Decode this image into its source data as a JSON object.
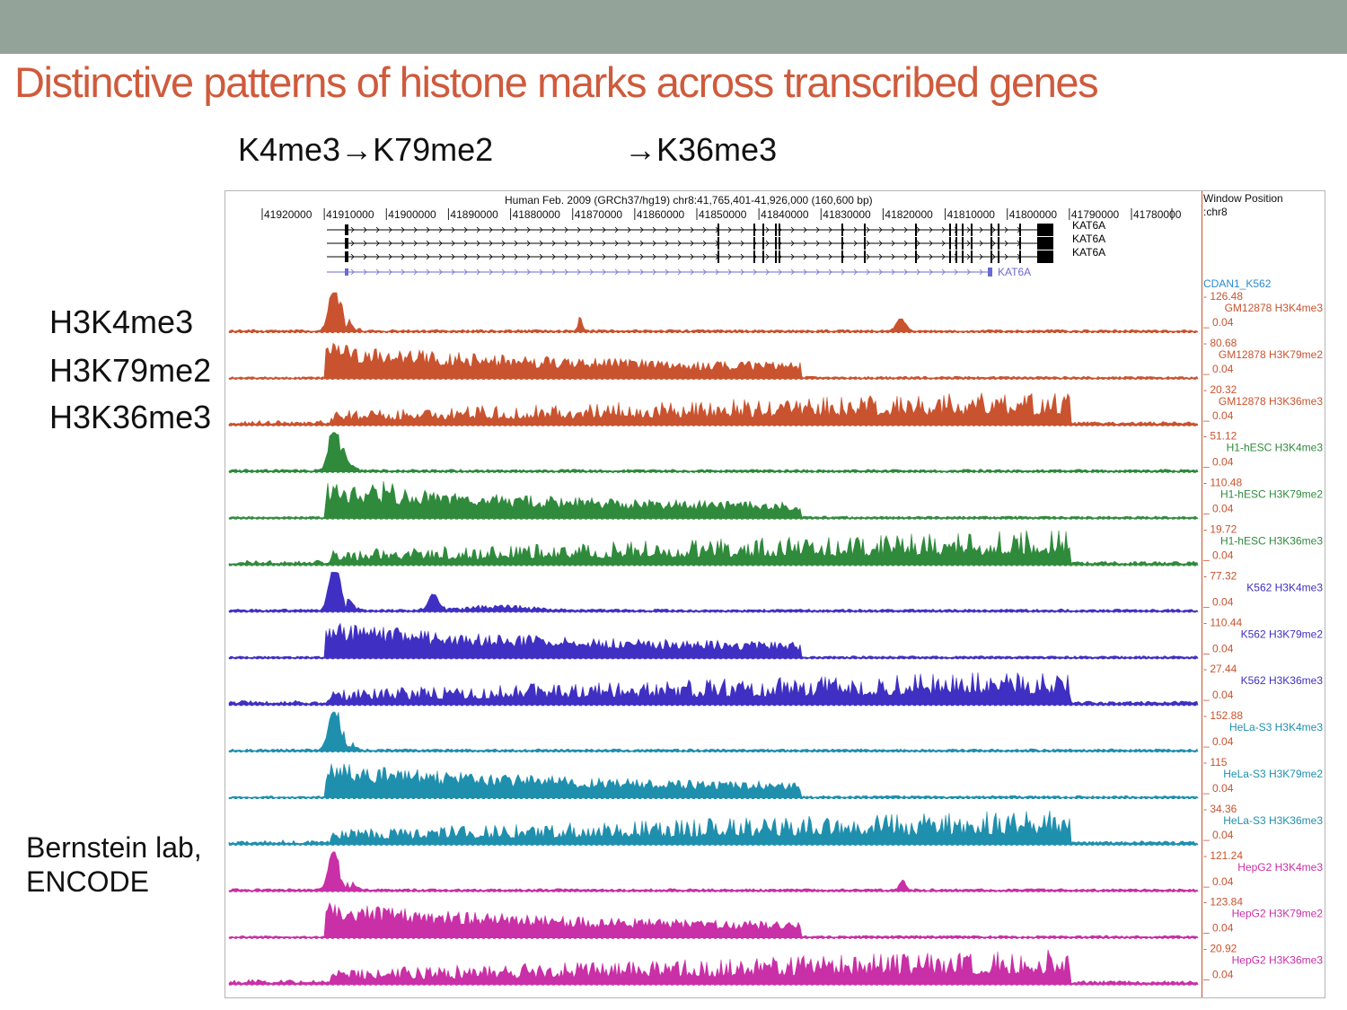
{
  "slide": {
    "title": "Distinctive patterns of histone marks across transcribed genes",
    "sequence_left": "K4me3→K79me2",
    "sequence_right": "→K36me3",
    "side_labels": [
      "H3K4me3",
      "H3K79me2",
      "H3K36me3"
    ],
    "credit_line1": "Bernstein lab,",
    "credit_line2": "ENCODE"
  },
  "browser": {
    "header": "Human Feb. 2009 (GRCh37/hg19)   chr8:41,765,401-41,926,000 (160,600 bp)",
    "window_label_line1": "Window Position",
    "window_label_line2": ":chr8",
    "coords": [
      "41920000",
      "41910000",
      "41900000",
      "41890000",
      "41880000",
      "41870000",
      "41860000",
      "41850000",
      "41840000",
      "41830000",
      "41820000",
      "41810000",
      "41800000",
      "41790000",
      "41780000"
    ],
    "genes": [
      {
        "name": "KAT6A",
        "color": "#000000"
      },
      {
        "name": "KAT6A",
        "color": "#000000"
      },
      {
        "name": "KAT6A",
        "color": "#000000"
      },
      {
        "name": "KAT6A",
        "color": "#6a6ad6"
      }
    ],
    "cdan_label": "CDAN1_K562",
    "cdan_color": "#2a8bd0",
    "tracks": [
      {
        "name": "GM12878 H3K4me3",
        "max": "126.48",
        "min": "0.04",
        "color": "#c9532f",
        "mark": "H3K4me3"
      },
      {
        "name": "GM12878 H3K79me2",
        "max": "80.68",
        "min": "0.04",
        "color": "#c9532f",
        "mark": "H3K79me2"
      },
      {
        "name": "GM12878 H3K36me3",
        "max": "20.32",
        "min": "0.04",
        "color": "#c9532f",
        "mark": "H3K36me3"
      },
      {
        "name": "H1-hESC H3K4me3",
        "max": "51.12",
        "min": "0.04",
        "color": "#2f8a3c",
        "mark": "H3K4me3"
      },
      {
        "name": "H1-hESC H3K79me2",
        "max": "110.48",
        "min": "0.04",
        "color": "#2f8a3c",
        "mark": "H3K79me2"
      },
      {
        "name": "H1-hESC H3K36me3",
        "max": "19.72",
        "min": "0.04",
        "color": "#2f8a3c",
        "mark": "H3K36me3"
      },
      {
        "name": "K562 H3K4me3",
        "max": "77.32",
        "min": "0.04",
        "color": "#3f2fc2",
        "mark": "H3K4me3"
      },
      {
        "name": "K562 H3K79me2",
        "max": "110.44",
        "min": "0.04",
        "color": "#3f2fc2",
        "mark": "H3K79me2"
      },
      {
        "name": "K562 H3K36me3",
        "max": "27.44",
        "min": "0.04",
        "color": "#3f2fc2",
        "mark": "H3K36me3"
      },
      {
        "name": "HeLa-S3 H3K4me3",
        "max": "152.88",
        "min": "0.04",
        "color": "#1f8fae",
        "mark": "H3K4me3"
      },
      {
        "name": "HeLa-S3 H3K79me2",
        "max": "115",
        "min": "0.04",
        "color": "#1f8fae",
        "mark": "H3K79me2"
      },
      {
        "name": "HeLa-S3 H3K36me3",
        "max": "34.36",
        "min": "0.04",
        "color": "#1f8fae",
        "mark": "H3K36me3"
      },
      {
        "name": "HepG2 H3K4me3",
        "max": "121.24",
        "min": "0.04",
        "color": "#c92fa6",
        "mark": "H3K4me3"
      },
      {
        "name": "HepG2 H3K79me2",
        "max": "123.84",
        "min": "0.04",
        "color": "#c92fa6",
        "mark": "H3K79me2"
      },
      {
        "name": "HepG2 H3K36me3",
        "max": "20.92",
        "min": "0.04",
        "color": "#c92fa6",
        "mark": "H3K36me3"
      }
    ],
    "scale_color": "#c9532f"
  },
  "chart_data": {
    "type": "area",
    "title": "Human Feb. 2009 (GRCh37/hg19)   chr8:41,765,401-41,926,000 (160,600 bp)",
    "x_axis": {
      "reversed": true,
      "ticks": [
        41920000,
        41910000,
        41900000,
        41890000,
        41880000,
        41870000,
        41860000,
        41850000,
        41840000,
        41830000,
        41820000,
        41810000,
        41800000,
        41790000,
        41780000
      ],
      "range": [
        41926000,
        41765401
      ]
    },
    "series": [
      {
        "name": "GM12878 H3K4me3",
        "ylim": [
          0.04,
          126.48
        ]
      },
      {
        "name": "GM12878 H3K79me2",
        "ylim": [
          0.04,
          80.68
        ]
      },
      {
        "name": "GM12878 H3K36me3",
        "ylim": [
          0.04,
          20.32
        ]
      },
      {
        "name": "H1-hESC H3K4me3",
        "ylim": [
          0.04,
          51.12
        ]
      },
      {
        "name": "H1-hESC H3K79me2",
        "ylim": [
          0.04,
          110.48
        ]
      },
      {
        "name": "H1-hESC H3K36me3",
        "ylim": [
          0.04,
          19.72
        ]
      },
      {
        "name": "K562 H3K4me3",
        "ylim": [
          0.04,
          77.32
        ]
      },
      {
        "name": "K562 H3K79me2",
        "ylim": [
          0.04,
          110.44
        ]
      },
      {
        "name": "K562 H3K36me3",
        "ylim": [
          0.04,
          27.44
        ]
      },
      {
        "name": "HeLa-S3 H3K4me3",
        "ylim": [
          0.04,
          152.88
        ]
      },
      {
        "name": "HeLa-S3 H3K79me2",
        "ylim": [
          0.04,
          115
        ]
      },
      {
        "name": "HeLa-S3 H3K36me3",
        "ylim": [
          0.04,
          34.36
        ]
      },
      {
        "name": "HepG2 H3K4me3",
        "ylim": [
          0.04,
          121.24
        ]
      },
      {
        "name": "HepG2 H3K79me2",
        "ylim": [
          0.04,
          123.84
        ]
      },
      {
        "name": "HepG2 H3K36me3",
        "ylim": [
          0.04,
          20.92
        ]
      }
    ]
  }
}
